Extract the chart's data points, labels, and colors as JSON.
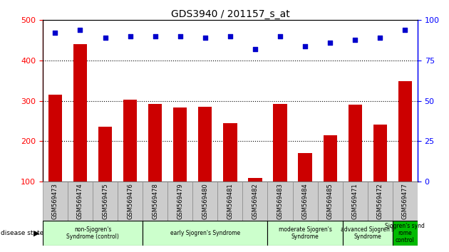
{
  "title": "GDS3940 / 201157_s_at",
  "samples": [
    "GSM569473",
    "GSM569474",
    "GSM569475",
    "GSM569476",
    "GSM569478",
    "GSM569479",
    "GSM569480",
    "GSM569481",
    "GSM569482",
    "GSM569483",
    "GSM569484",
    "GSM569485",
    "GSM569471",
    "GSM569472",
    "GSM569477"
  ],
  "counts": [
    315,
    440,
    235,
    303,
    293,
    284,
    285,
    245,
    108,
    293,
    170,
    214,
    290,
    241,
    348
  ],
  "percentiles": [
    92,
    94,
    89,
    90,
    90,
    90,
    89,
    90,
    82,
    90,
    84,
    86,
    88,
    89,
    94
  ],
  "bar_color": "#cc0000",
  "dot_color": "#0000cc",
  "group_spans": [
    {
      "start": 0,
      "end": 3,
      "label": "non-Sjogren's\nSyndrome (control)",
      "color": "#ccffcc"
    },
    {
      "start": 4,
      "end": 8,
      "label": "early Sjogren's Syndrome",
      "color": "#ccffcc"
    },
    {
      "start": 9,
      "end": 11,
      "label": "moderate Sjogren's\nSyndrome",
      "color": "#ccffcc"
    },
    {
      "start": 12,
      "end": 13,
      "label": "advanced Sjogren's\nSyndrome",
      "color": "#ccffcc"
    },
    {
      "start": 14,
      "end": 14,
      "label": "Sjogren's synd\nrome\ncontrol",
      "color": "#00bb00"
    }
  ],
  "ylim_left": [
    100,
    500
  ],
  "ylim_right": [
    0,
    100
  ],
  "yticks_left": [
    100,
    200,
    300,
    400,
    500
  ],
  "yticks_right": [
    0,
    25,
    50,
    75,
    100
  ],
  "grid_lines": [
    200,
    300,
    400
  ],
  "tick_bg_color": "#cccccc",
  "tick_edge_color": "#888888"
}
